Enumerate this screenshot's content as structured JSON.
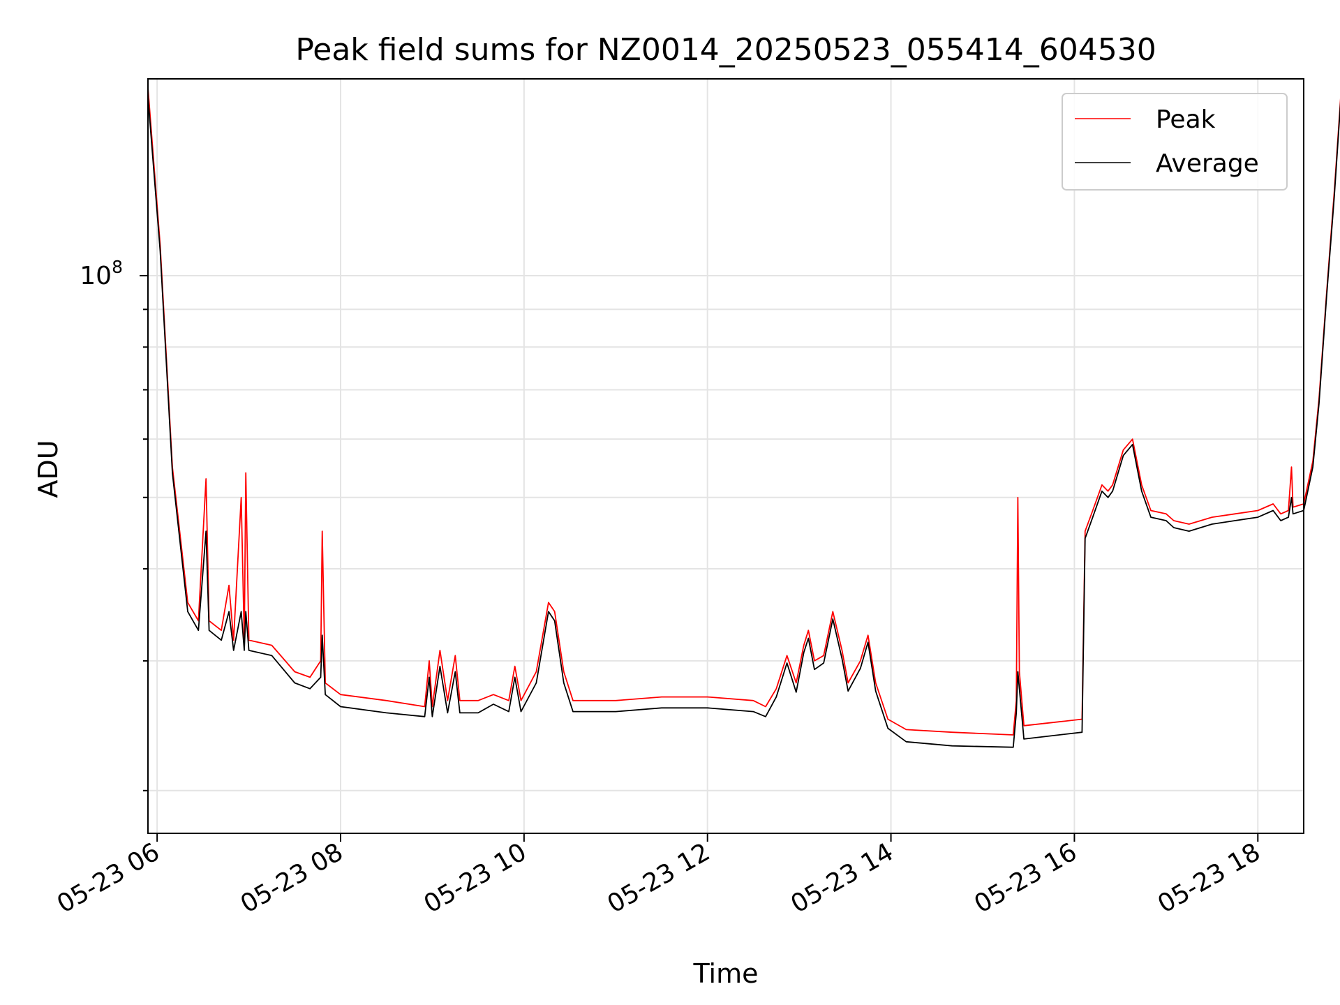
{
  "chart_data": {
    "type": "line",
    "title": "Peak field sums for NZ0014_20250523_055414_604530",
    "xlabel": "Time",
    "ylabel": "ADU",
    "y_scale": "log",
    "y_tick_base": "10",
    "y_tick_exp": "8",
    "y_tick_value": 100000000,
    "xlim": [
      "2025-05-23 05:54",
      "2025-05-23 18:30"
    ],
    "ylim": [
      17500000,
      185000000
    ],
    "x_ticks": [
      "05-23 06",
      "05-23 08",
      "05-23 10",
      "05-23 12",
      "05-23 14",
      "05-23 16",
      "05-23 18"
    ],
    "x_tick_times": [
      "2025-05-23 06:00",
      "2025-05-23 08:00",
      "2025-05-23 10:00",
      "2025-05-23 12:00",
      "2025-05-23 14:00",
      "2025-05-23 16:00",
      "2025-05-23 18:00"
    ],
    "grid": true,
    "legend_position": "top-right",
    "series": [
      {
        "name": "Peak",
        "color": "#ff0000",
        "points": [
          [
            "2025-05-23 05:54",
            180000000
          ],
          [
            "2025-05-23 06:02",
            110000000
          ],
          [
            "2025-05-23 06:10",
            55000000
          ],
          [
            "2025-05-23 06:20",
            36000000
          ],
          [
            "2025-05-23 06:27",
            34000000
          ],
          [
            "2025-05-23 06:32",
            53000000
          ],
          [
            "2025-05-23 06:34",
            34000000
          ],
          [
            "2025-05-23 06:42",
            33000000
          ],
          [
            "2025-05-23 06:47",
            38000000
          ],
          [
            "2025-05-23 06:50",
            32000000
          ],
          [
            "2025-05-23 06:55",
            50000000
          ],
          [
            "2025-05-23 06:57",
            32000000
          ],
          [
            "2025-05-23 06:58",
            54000000
          ],
          [
            "2025-05-23 07:00",
            32000000
          ],
          [
            "2025-05-23 07:15",
            31500000
          ],
          [
            "2025-05-23 07:30",
            29000000
          ],
          [
            "2025-05-23 07:40",
            28500000
          ],
          [
            "2025-05-23 07:47",
            30000000
          ],
          [
            "2025-05-23 07:48",
            45000000
          ],
          [
            "2025-05-23 07:50",
            28000000
          ],
          [
            "2025-05-23 08:00",
            27000000
          ],
          [
            "2025-05-23 08:30",
            26500000
          ],
          [
            "2025-05-23 08:55",
            26000000
          ],
          [
            "2025-05-23 08:58",
            30000000
          ],
          [
            "2025-05-23 09:00",
            26000000
          ],
          [
            "2025-05-23 09:05",
            31000000
          ],
          [
            "2025-05-23 09:10",
            26500000
          ],
          [
            "2025-05-23 09:15",
            30500000
          ],
          [
            "2025-05-23 09:18",
            26500000
          ],
          [
            "2025-05-23 09:30",
            26500000
          ],
          [
            "2025-05-23 09:40",
            27000000
          ],
          [
            "2025-05-23 09:50",
            26500000
          ],
          [
            "2025-05-23 09:54",
            29500000
          ],
          [
            "2025-05-23 09:58",
            26500000
          ],
          [
            "2025-05-23 10:08",
            29000000
          ],
          [
            "2025-05-23 10:16",
            36000000
          ],
          [
            "2025-05-23 10:20",
            35000000
          ],
          [
            "2025-05-23 10:26",
            29000000
          ],
          [
            "2025-05-23 10:32",
            26500000
          ],
          [
            "2025-05-23 11:00",
            26500000
          ],
          [
            "2025-05-23 11:30",
            26800000
          ],
          [
            "2025-05-23 12:00",
            26800000
          ],
          [
            "2025-05-23 12:30",
            26500000
          ],
          [
            "2025-05-23 12:38",
            26000000
          ],
          [
            "2025-05-23 12:45",
            27500000
          ],
          [
            "2025-05-23 12:52",
            30500000
          ],
          [
            "2025-05-23 12:58",
            28000000
          ],
          [
            "2025-05-23 13:03",
            31500000
          ],
          [
            "2025-05-23 13:06",
            33000000
          ],
          [
            "2025-05-23 13:10",
            30000000
          ],
          [
            "2025-05-23 13:16",
            30500000
          ],
          [
            "2025-05-23 13:22",
            35000000
          ],
          [
            "2025-05-23 13:28",
            31000000
          ],
          [
            "2025-05-23 13:32",
            28000000
          ],
          [
            "2025-05-23 13:40",
            30000000
          ],
          [
            "2025-05-23 13:45",
            32500000
          ],
          [
            "2025-05-23 13:50",
            28000000
          ],
          [
            "2025-05-23 13:58",
            25000000
          ],
          [
            "2025-05-23 14:10",
            24200000
          ],
          [
            "2025-05-23 14:40",
            24000000
          ],
          [
            "2025-05-23 15:20",
            23800000
          ],
          [
            "2025-05-23 15:22",
            26500000
          ],
          [
            "2025-05-23 15:23",
            50000000
          ],
          [
            "2025-05-23 15:24",
            29000000
          ],
          [
            "2025-05-23 15:27",
            24500000
          ],
          [
            "2025-05-23 15:50",
            24800000
          ],
          [
            "2025-05-23 16:05",
            25000000
          ],
          [
            "2025-05-23 16:07",
            45000000
          ],
          [
            "2025-05-23 16:12",
            48000000
          ],
          [
            "2025-05-23 16:18",
            52000000
          ],
          [
            "2025-05-23 16:22",
            51000000
          ],
          [
            "2025-05-23 16:25",
            52000000
          ],
          [
            "2025-05-23 16:32",
            58000000
          ],
          [
            "2025-05-23 16:38",
            60000000
          ],
          [
            "2025-05-23 16:44",
            52000000
          ],
          [
            "2025-05-23 16:50",
            48000000
          ],
          [
            "2025-05-23 17:00",
            47500000
          ],
          [
            "2025-05-23 17:05",
            46500000
          ],
          [
            "2025-05-23 17:15",
            46000000
          ],
          [
            "2025-05-23 17:30",
            47000000
          ],
          [
            "2025-05-23 17:45",
            47500000
          ],
          [
            "2025-05-23 18:00",
            48000000
          ],
          [
            "2025-05-23 18:10",
            49000000
          ],
          [
            "2025-05-23 18:15",
            47500000
          ],
          [
            "2025-05-23 18:20",
            48000000
          ],
          [
            "2025-05-23 18:22",
            55000000
          ],
          [
            "2025-05-23 18:23",
            48500000
          ],
          [
            "2025-05-23 18:30",
            49000000
          ],
          [
            "2025-05-23 18:36",
            56000000
          ],
          [
            "2025-05-23 18:40",
            68000000
          ],
          [
            "2025-05-23 18:45",
            95000000
          ],
          [
            "2025-05-23 18:50",
            130000000
          ],
          [
            "2025-05-23 18:55",
            185000000
          ]
        ]
      },
      {
        "name": "Average",
        "color": "#000000",
        "points": [
          [
            "2025-05-23 05:54",
            175000000
          ],
          [
            "2025-05-23 06:02",
            108000000
          ],
          [
            "2025-05-23 06:10",
            54000000
          ],
          [
            "2025-05-23 06:20",
            35000000
          ],
          [
            "2025-05-23 06:27",
            33000000
          ],
          [
            "2025-05-23 06:32",
            45000000
          ],
          [
            "2025-05-23 06:34",
            33000000
          ],
          [
            "2025-05-23 06:42",
            32000000
          ],
          [
            "2025-05-23 06:47",
            35000000
          ],
          [
            "2025-05-23 06:50",
            31000000
          ],
          [
            "2025-05-23 06:55",
            35000000
          ],
          [
            "2025-05-23 06:57",
            31000000
          ],
          [
            "2025-05-23 06:58",
            35000000
          ],
          [
            "2025-05-23 07:00",
            31000000
          ],
          [
            "2025-05-23 07:15",
            30500000
          ],
          [
            "2025-05-23 07:30",
            28000000
          ],
          [
            "2025-05-23 07:40",
            27500000
          ],
          [
            "2025-05-23 07:47",
            28500000
          ],
          [
            "2025-05-23 07:48",
            32500000
          ],
          [
            "2025-05-23 07:50",
            27000000
          ],
          [
            "2025-05-23 08:00",
            26000000
          ],
          [
            "2025-05-23 08:30",
            25500000
          ],
          [
            "2025-05-23 08:55",
            25200000
          ],
          [
            "2025-05-23 08:58",
            28500000
          ],
          [
            "2025-05-23 09:00",
            25200000
          ],
          [
            "2025-05-23 09:05",
            29500000
          ],
          [
            "2025-05-23 09:10",
            25500000
          ],
          [
            "2025-05-23 09:15",
            29000000
          ],
          [
            "2025-05-23 09:18",
            25500000
          ],
          [
            "2025-05-23 09:30",
            25500000
          ],
          [
            "2025-05-23 09:40",
            26200000
          ],
          [
            "2025-05-23 09:50",
            25600000
          ],
          [
            "2025-05-23 09:54",
            28500000
          ],
          [
            "2025-05-23 09:58",
            25600000
          ],
          [
            "2025-05-23 10:08",
            28000000
          ],
          [
            "2025-05-23 10:16",
            35000000
          ],
          [
            "2025-05-23 10:20",
            34000000
          ],
          [
            "2025-05-23 10:26",
            28000000
          ],
          [
            "2025-05-23 10:32",
            25600000
          ],
          [
            "2025-05-23 11:00",
            25600000
          ],
          [
            "2025-05-23 11:30",
            25900000
          ],
          [
            "2025-05-23 12:00",
            25900000
          ],
          [
            "2025-05-23 12:30",
            25600000
          ],
          [
            "2025-05-23 12:38",
            25200000
          ],
          [
            "2025-05-23 12:45",
            26800000
          ],
          [
            "2025-05-23 12:52",
            29800000
          ],
          [
            "2025-05-23 12:58",
            27200000
          ],
          [
            "2025-05-23 13:03",
            30800000
          ],
          [
            "2025-05-23 13:06",
            32200000
          ],
          [
            "2025-05-23 13:10",
            29200000
          ],
          [
            "2025-05-23 13:16",
            29800000
          ],
          [
            "2025-05-23 13:22",
            34200000
          ],
          [
            "2025-05-23 13:28",
            30200000
          ],
          [
            "2025-05-23 13:32",
            27300000
          ],
          [
            "2025-05-23 13:40",
            29300000
          ],
          [
            "2025-05-23 13:45",
            31800000
          ],
          [
            "2025-05-23 13:50",
            27300000
          ],
          [
            "2025-05-23 13:58",
            24300000
          ],
          [
            "2025-05-23 14:10",
            23300000
          ],
          [
            "2025-05-23 14:40",
            23000000
          ],
          [
            "2025-05-23 15:20",
            22900000
          ],
          [
            "2025-05-23 15:22",
            25500000
          ],
          [
            "2025-05-23 15:23",
            29000000
          ],
          [
            "2025-05-23 15:24",
            27500000
          ],
          [
            "2025-05-23 15:27",
            23500000
          ],
          [
            "2025-05-23 15:50",
            23800000
          ],
          [
            "2025-05-23 16:05",
            24000000
          ],
          [
            "2025-05-23 16:07",
            44000000
          ],
          [
            "2025-05-23 16:12",
            47000000
          ],
          [
            "2025-05-23 16:18",
            51000000
          ],
          [
            "2025-05-23 16:22",
            50000000
          ],
          [
            "2025-05-23 16:25",
            51000000
          ],
          [
            "2025-05-23 16:32",
            57000000
          ],
          [
            "2025-05-23 16:38",
            59000000
          ],
          [
            "2025-05-23 16:44",
            51000000
          ],
          [
            "2025-05-23 16:50",
            47000000
          ],
          [
            "2025-05-23 17:00",
            46500000
          ],
          [
            "2025-05-23 17:05",
            45500000
          ],
          [
            "2025-05-23 17:15",
            45000000
          ],
          [
            "2025-05-23 17:30",
            46000000
          ],
          [
            "2025-05-23 17:45",
            46500000
          ],
          [
            "2025-05-23 18:00",
            47000000
          ],
          [
            "2025-05-23 18:10",
            48000000
          ],
          [
            "2025-05-23 18:15",
            46500000
          ],
          [
            "2025-05-23 18:20",
            47000000
          ],
          [
            "2025-05-23 18:22",
            50000000
          ],
          [
            "2025-05-23 18:23",
            47500000
          ],
          [
            "2025-05-23 18:30",
            48000000
          ],
          [
            "2025-05-23 18:36",
            55000000
          ],
          [
            "2025-05-23 18:40",
            67000000
          ],
          [
            "2025-05-23 18:45",
            94000000
          ],
          [
            "2025-05-23 18:50",
            128000000
          ],
          [
            "2025-05-23 18:55",
            183000000
          ]
        ]
      }
    ]
  }
}
